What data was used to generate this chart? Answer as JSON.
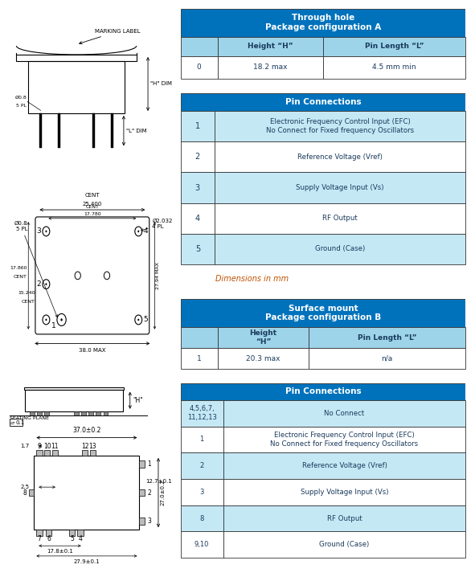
{
  "table1_title": "Through hole\nPackage configuration A",
  "table1_col0": "",
  "table1_hdr1": "Height “H”",
  "table1_hdr2": "Pin Length “L”",
  "table1_r0": [
    "0",
    "18.2 max",
    "4.5 mm min"
  ],
  "table2_title": "Pin Connections",
  "table2_rows": [
    [
      "1",
      "Electronic Frequency Control Input (EFC)\nNo Connect for Fixed frequency Oscillators"
    ],
    [
      "2",
      "Reference Voltage (Vref)"
    ],
    [
      "3",
      "Supply Voltage Input (Vs)"
    ],
    [
      "4",
      "RF Output"
    ],
    [
      "5",
      "Ground (Case)"
    ]
  ],
  "dim_text": "Dimensions in mm",
  "table3_title": "Surface mount\nPackage configuration B",
  "table3_hdr1": "Height\n“H”",
  "table3_hdr2": "Pin Length “L”",
  "table3_r0": [
    "1",
    "20.3 max",
    "n/a"
  ],
  "table4_title": "Pin Connections",
  "table4_rows": [
    [
      "4,5,6,7,\n11,12,13",
      "No Connect"
    ],
    [
      "1",
      "Electronic Frequency Control Input (EFC)\nNo Connect for Fixed frequency Oscillators"
    ],
    [
      "2",
      "Reference Voltage (Vref)"
    ],
    [
      "3",
      "Supply Voltage Input (Vs)"
    ],
    [
      "8",
      "RF Output"
    ],
    [
      "9,10",
      "Ground (Case)"
    ]
  ],
  "hdr_blue": "#0072BC",
  "sub_blue": "#9DD4EA",
  "row_blue": "#C5E8F5",
  "white": "#FFFFFF",
  "txt_dark": "#1A3A5C",
  "txt_orange": "#C05000",
  "black": "#000000"
}
